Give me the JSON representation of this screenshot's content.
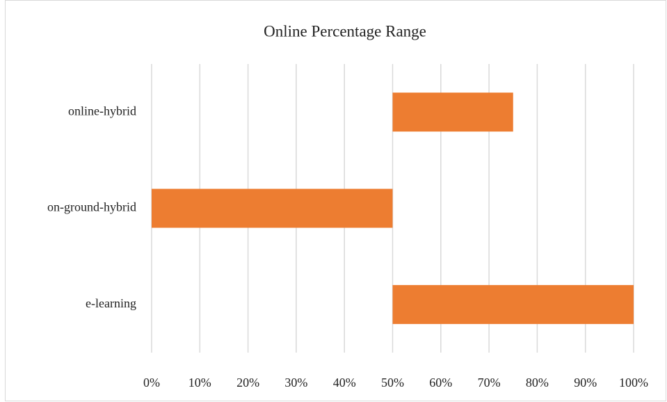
{
  "chart_data": {
    "type": "range-bar",
    "title": "Online Percentage Range",
    "categories": [
      "online-hybrid",
      "on-ground-hybrid",
      "e-learning"
    ],
    "ranges": [
      [
        50,
        75
      ],
      [
        0,
        50
      ],
      [
        50,
        100
      ]
    ],
    "color": "#ed7d31",
    "xlim": [
      0,
      100
    ],
    "xticks": [
      {
        "value": 0,
        "label": "0%"
      },
      {
        "value": 10,
        "label": "10%"
      },
      {
        "value": 20,
        "label": "20%"
      },
      {
        "value": 30,
        "label": "30%"
      },
      {
        "value": 40,
        "label": "40%"
      },
      {
        "value": 50,
        "label": "50%"
      },
      {
        "value": 60,
        "label": "60%"
      },
      {
        "value": 70,
        "label": "70%"
      },
      {
        "value": 80,
        "label": "80%"
      },
      {
        "value": 90,
        "label": "90%"
      },
      {
        "value": 100,
        "label": "100%"
      }
    ],
    "grid": true
  }
}
